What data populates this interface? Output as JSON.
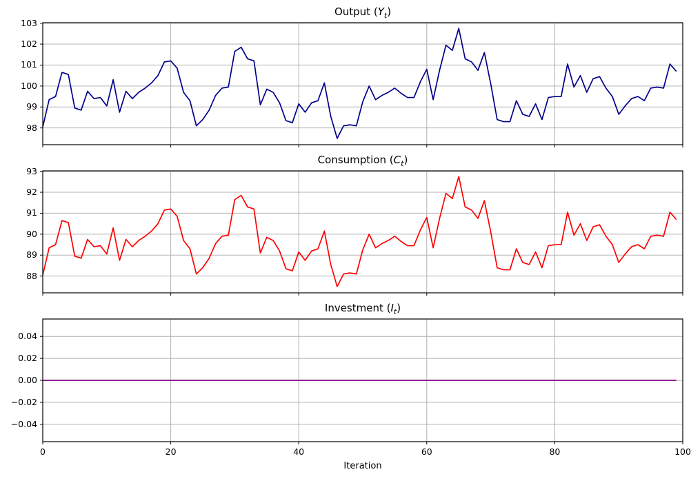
{
  "figure": {
    "background": "#ffffff",
    "grid_color": "#b0b0b0",
    "spine_color": "#000000"
  },
  "x_axis": {
    "label": "Iteration",
    "xlim": [
      0,
      100
    ],
    "ticks": [
      {
        "v": 0,
        "label": "0"
      },
      {
        "v": 20,
        "label": "20"
      },
      {
        "v": 40,
        "label": "40"
      },
      {
        "v": 60,
        "label": "60"
      },
      {
        "v": 80,
        "label": "80"
      },
      {
        "v": 100,
        "label": "100"
      }
    ]
  },
  "chart_data": [
    {
      "id": "output",
      "type": "line",
      "title": {
        "pre": "Output (",
        "var": "Y",
        "sub": "t",
        "post": ")"
      },
      "line_color": "#00008B",
      "grid": true,
      "legend": null,
      "ylim": [
        97.2,
        103.02
      ],
      "yticks": [
        {
          "v": 98,
          "label": "98"
        },
        {
          "v": 99,
          "label": "99"
        },
        {
          "v": 100,
          "label": "100"
        },
        {
          "v": 101,
          "label": "101"
        },
        {
          "v": 102,
          "label": "102"
        },
        {
          "v": 103,
          "label": "103"
        }
      ],
      "x_start": 0,
      "x_step": 1,
      "values": [
        98.05,
        99.35,
        99.5,
        100.65,
        100.55,
        98.95,
        98.85,
        99.75,
        99.4,
        99.45,
        99.05,
        100.3,
        98.75,
        99.75,
        99.4,
        99.7,
        99.9,
        100.15,
        100.5,
        101.15,
        101.2,
        100.85,
        99.7,
        99.3,
        98.1,
        98.4,
        98.85,
        99.55,
        99.9,
        99.95,
        101.65,
        101.85,
        101.3,
        101.2,
        99.1,
        99.85,
        99.7,
        99.2,
        98.35,
        98.25,
        99.15,
        98.75,
        99.2,
        99.3,
        100.15,
        98.55,
        97.5,
        98.1,
        98.15,
        98.1,
        99.25,
        100.0,
        99.35,
        99.55,
        99.7,
        99.9,
        99.65,
        99.45,
        99.45,
        100.2,
        100.8,
        99.35,
        100.75,
        101.95,
        101.7,
        102.75,
        101.3,
        101.15,
        100.75,
        101.6,
        100.1,
        98.4,
        98.3,
        98.3,
        99.3,
        98.65,
        98.55,
        99.15,
        98.4,
        99.45,
        99.5,
        99.5,
        101.05,
        99.95,
        100.5,
        99.7,
        100.35,
        100.45,
        99.9,
        99.5,
        98.65,
        99.05,
        99.4,
        99.5,
        99.3,
        99.9,
        99.95,
        99.9,
        101.05,
        100.7
      ]
    },
    {
      "id": "consumption",
      "type": "line",
      "title": {
        "pre": "Consumption (",
        "var": "C",
        "sub": "t",
        "post": ")"
      },
      "line_color": "#FF0000",
      "grid": true,
      "legend": null,
      "ylim": [
        87.2,
        93.02
      ],
      "yticks": [
        {
          "v": 88,
          "label": "88"
        },
        {
          "v": 89,
          "label": "89"
        },
        {
          "v": 90,
          "label": "90"
        },
        {
          "v": 91,
          "label": "91"
        },
        {
          "v": 92,
          "label": "92"
        },
        {
          "v": 93,
          "label": "93"
        }
      ],
      "x_start": 0,
      "x_step": 1,
      "values": [
        88.05,
        89.35,
        89.5,
        90.65,
        90.55,
        88.95,
        88.85,
        89.75,
        89.4,
        89.45,
        89.05,
        90.3,
        88.75,
        89.75,
        89.4,
        89.7,
        89.9,
        90.15,
        90.5,
        91.15,
        91.2,
        90.85,
        89.7,
        89.3,
        88.1,
        88.4,
        88.85,
        89.55,
        89.9,
        89.95,
        91.65,
        91.85,
        91.3,
        91.2,
        89.1,
        89.85,
        89.7,
        89.2,
        88.35,
        88.25,
        89.15,
        88.75,
        89.2,
        89.3,
        90.15,
        88.55,
        87.5,
        88.1,
        88.15,
        88.1,
        89.25,
        90.0,
        89.35,
        89.55,
        89.7,
        89.9,
        89.65,
        89.45,
        89.45,
        90.2,
        90.8,
        89.35,
        90.75,
        91.95,
        91.7,
        92.75,
        91.3,
        91.15,
        90.75,
        91.6,
        90.1,
        88.4,
        88.3,
        88.3,
        89.3,
        88.65,
        88.55,
        89.15,
        88.4,
        89.45,
        89.5,
        89.5,
        91.05,
        89.95,
        90.5,
        89.7,
        90.35,
        90.45,
        89.9,
        89.5,
        88.65,
        89.05,
        89.4,
        89.5,
        89.3,
        89.9,
        89.95,
        89.9,
        91.05,
        90.7
      ]
    },
    {
      "id": "investment",
      "type": "line",
      "title": {
        "pre": "Investment (",
        "var": "I",
        "sub": "t",
        "post": ")"
      },
      "line_color": "#800080",
      "grid": true,
      "legend": null,
      "ylim": [
        -0.0558,
        0.0558
      ],
      "yticks": [
        {
          "v": -0.04,
          "label": "−0.04"
        },
        {
          "v": -0.02,
          "label": "−0.02"
        },
        {
          "v": 0.0,
          "label": "0.00"
        },
        {
          "v": 0.02,
          "label": "0.02"
        },
        {
          "v": 0.04,
          "label": "0.04"
        }
      ],
      "x_start": 0,
      "x_step": 1,
      "values": [
        0.0,
        0.0,
        0.0,
        0.0,
        0.0,
        0.0,
        0.0,
        0.0,
        0.0,
        0.0,
        0.0,
        0.0,
        0.0,
        0.0,
        0.0,
        0.0,
        0.0,
        0.0,
        0.0,
        0.0,
        0.0,
        0.0,
        0.0,
        0.0,
        0.0,
        0.0,
        0.0,
        0.0,
        0.0,
        0.0,
        0.0,
        0.0,
        0.0,
        0.0,
        0.0,
        0.0,
        0.0,
        0.0,
        0.0,
        0.0,
        0.0,
        0.0,
        0.0,
        0.0,
        0.0,
        0.0,
        0.0,
        0.0,
        0.0,
        0.0,
        0.0,
        0.0,
        0.0,
        0.0,
        0.0,
        0.0,
        0.0,
        0.0,
        0.0,
        0.0,
        0.0,
        0.0,
        0.0,
        0.0,
        0.0,
        0.0,
        0.0,
        0.0,
        0.0,
        0.0,
        0.0,
        0.0,
        0.0,
        0.0,
        0.0,
        0.0,
        0.0,
        0.0,
        0.0,
        0.0,
        0.0,
        0.0,
        0.0,
        0.0,
        0.0,
        0.0,
        0.0,
        0.0,
        0.0,
        0.0,
        0.0,
        0.0,
        0.0,
        0.0,
        0.0,
        0.0,
        0.0,
        0.0,
        0.0,
        0.0
      ]
    }
  ]
}
